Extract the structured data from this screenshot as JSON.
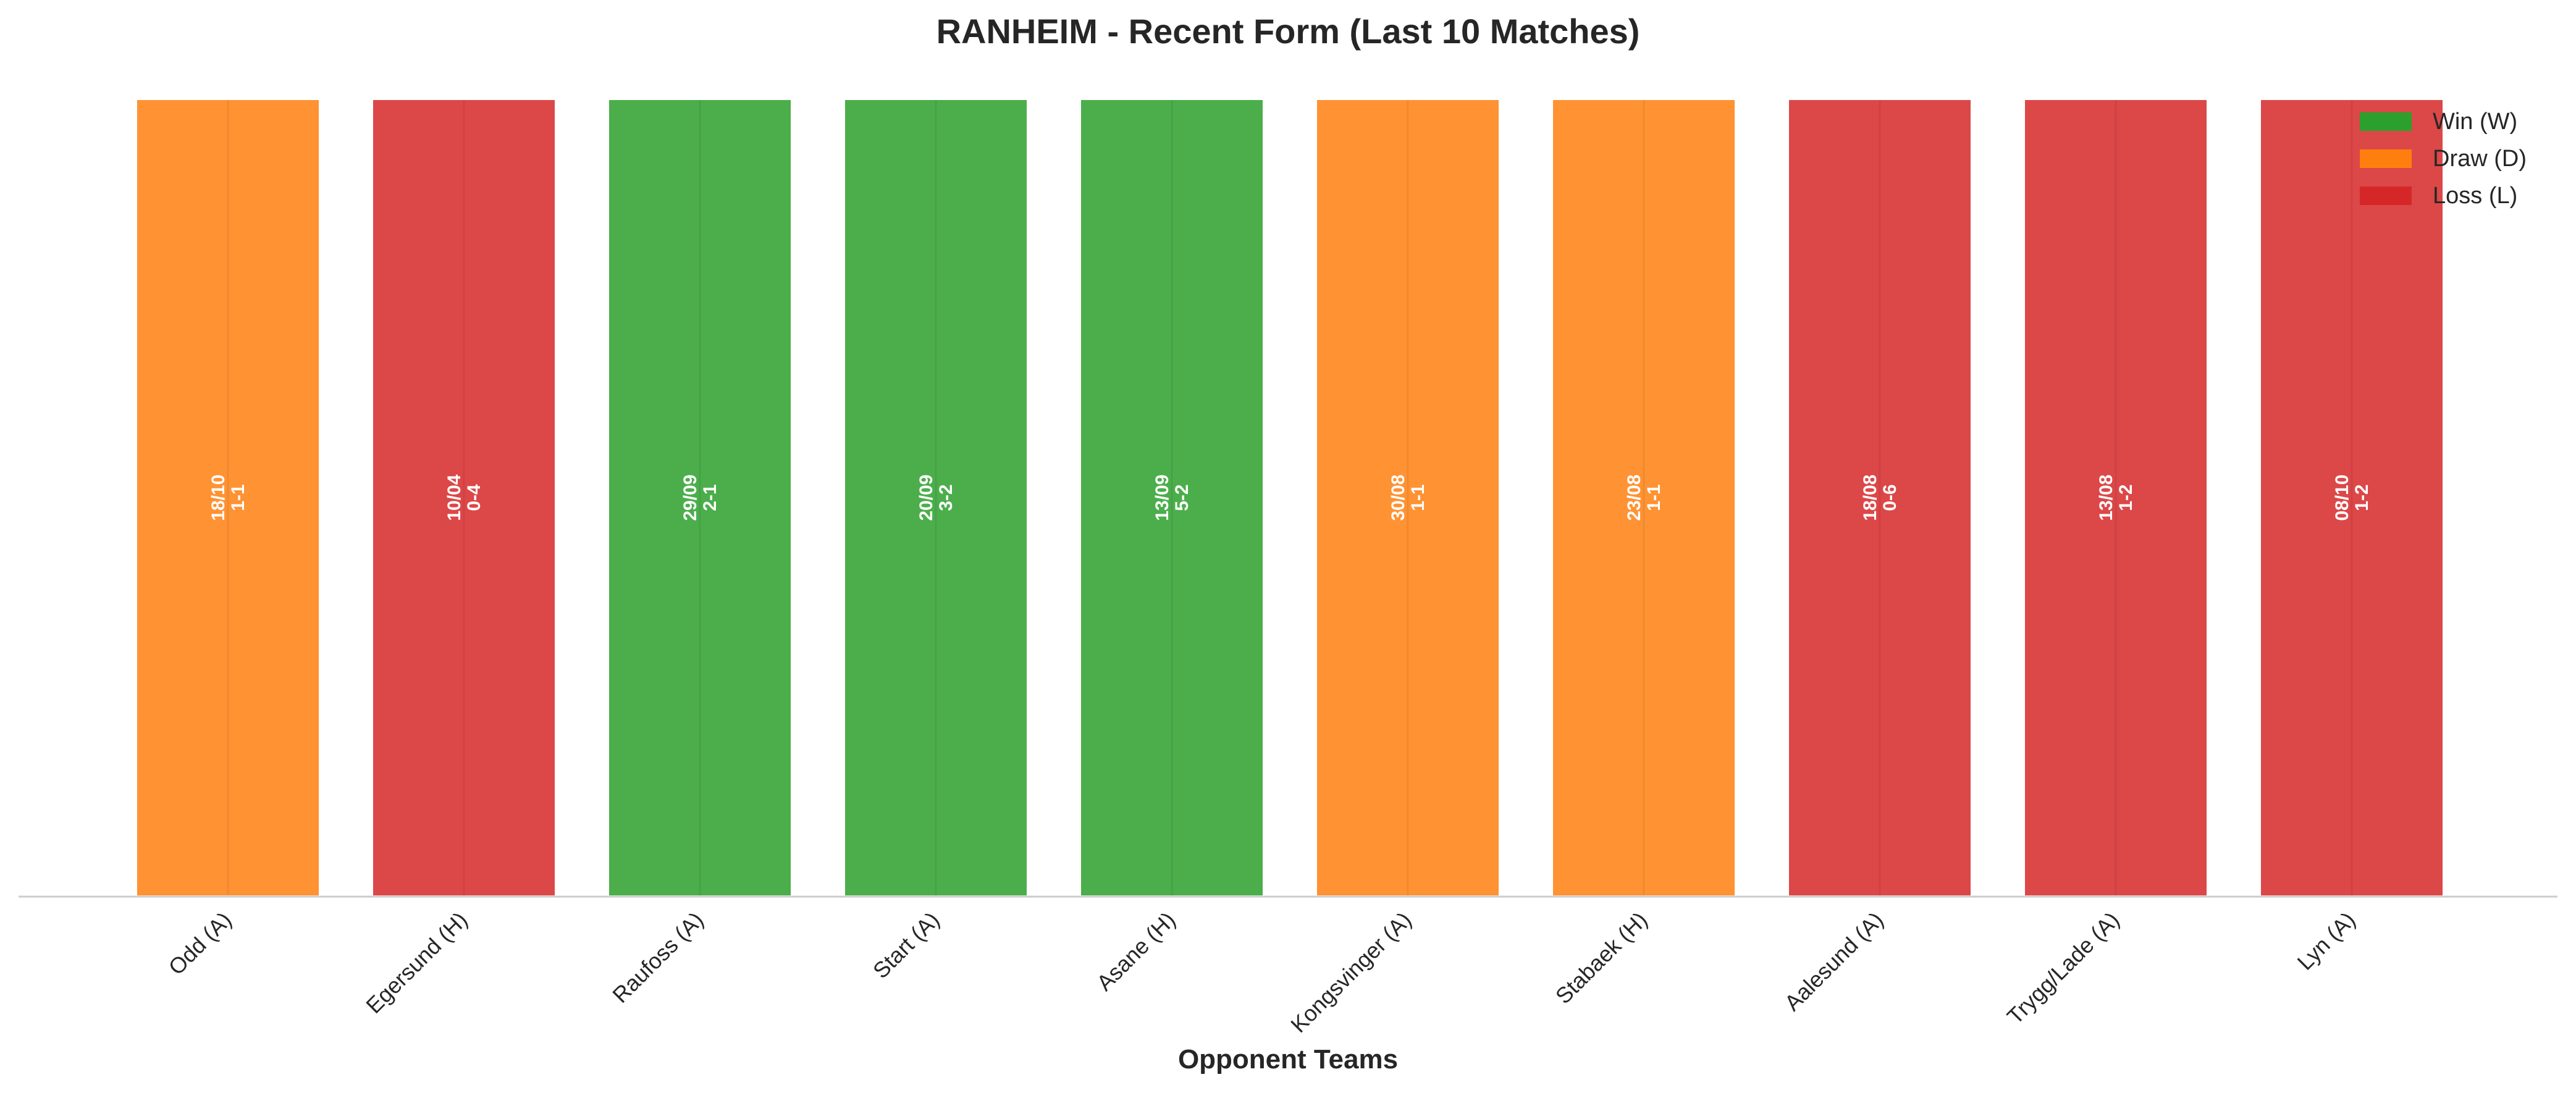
{
  "chart_data": {
    "type": "bar",
    "title": "RANHEIM - Recent Form (Last 10 Matches)",
    "xlabel": "Opponent Teams",
    "ylabel": "",
    "categories": [
      "Odd (A)",
      "Egersund (H)",
      "Raufoss (A)",
      "Start (A)",
      "Asane (H)",
      "Kongsvinger (A)",
      "Stabaek (H)",
      "Aalesund (A)",
      "Trygg/Lade (A)",
      "Lyn (A)"
    ],
    "results": [
      "D",
      "L",
      "W",
      "W",
      "W",
      "D",
      "D",
      "L",
      "L",
      "L"
    ],
    "dates": [
      "18/10",
      "10/04",
      "29/09",
      "20/09",
      "13/09",
      "30/08",
      "23/08",
      "18/08",
      "13/08",
      "08/10"
    ],
    "scores": [
      "1-1",
      "0-4",
      "2-1",
      "3-2",
      "5-2",
      "1-1",
      "1-1",
      "0-6",
      "1-2",
      "1-2"
    ],
    "values": [
      1,
      1,
      1,
      1,
      1,
      1,
      1,
      1,
      1,
      1
    ],
    "ylim": [
      0,
      1
    ],
    "grid": false,
    "legend": {
      "placement": "top-right",
      "entries": [
        {
          "key": "W",
          "label": "Win (W)",
          "color": "#2ca02c"
        },
        {
          "key": "D",
          "label": "Draw (D)",
          "color": "#ff7f0e"
        },
        {
          "key": "L",
          "label": "Loss (L)",
          "color": "#d62728"
        }
      ]
    }
  }
}
